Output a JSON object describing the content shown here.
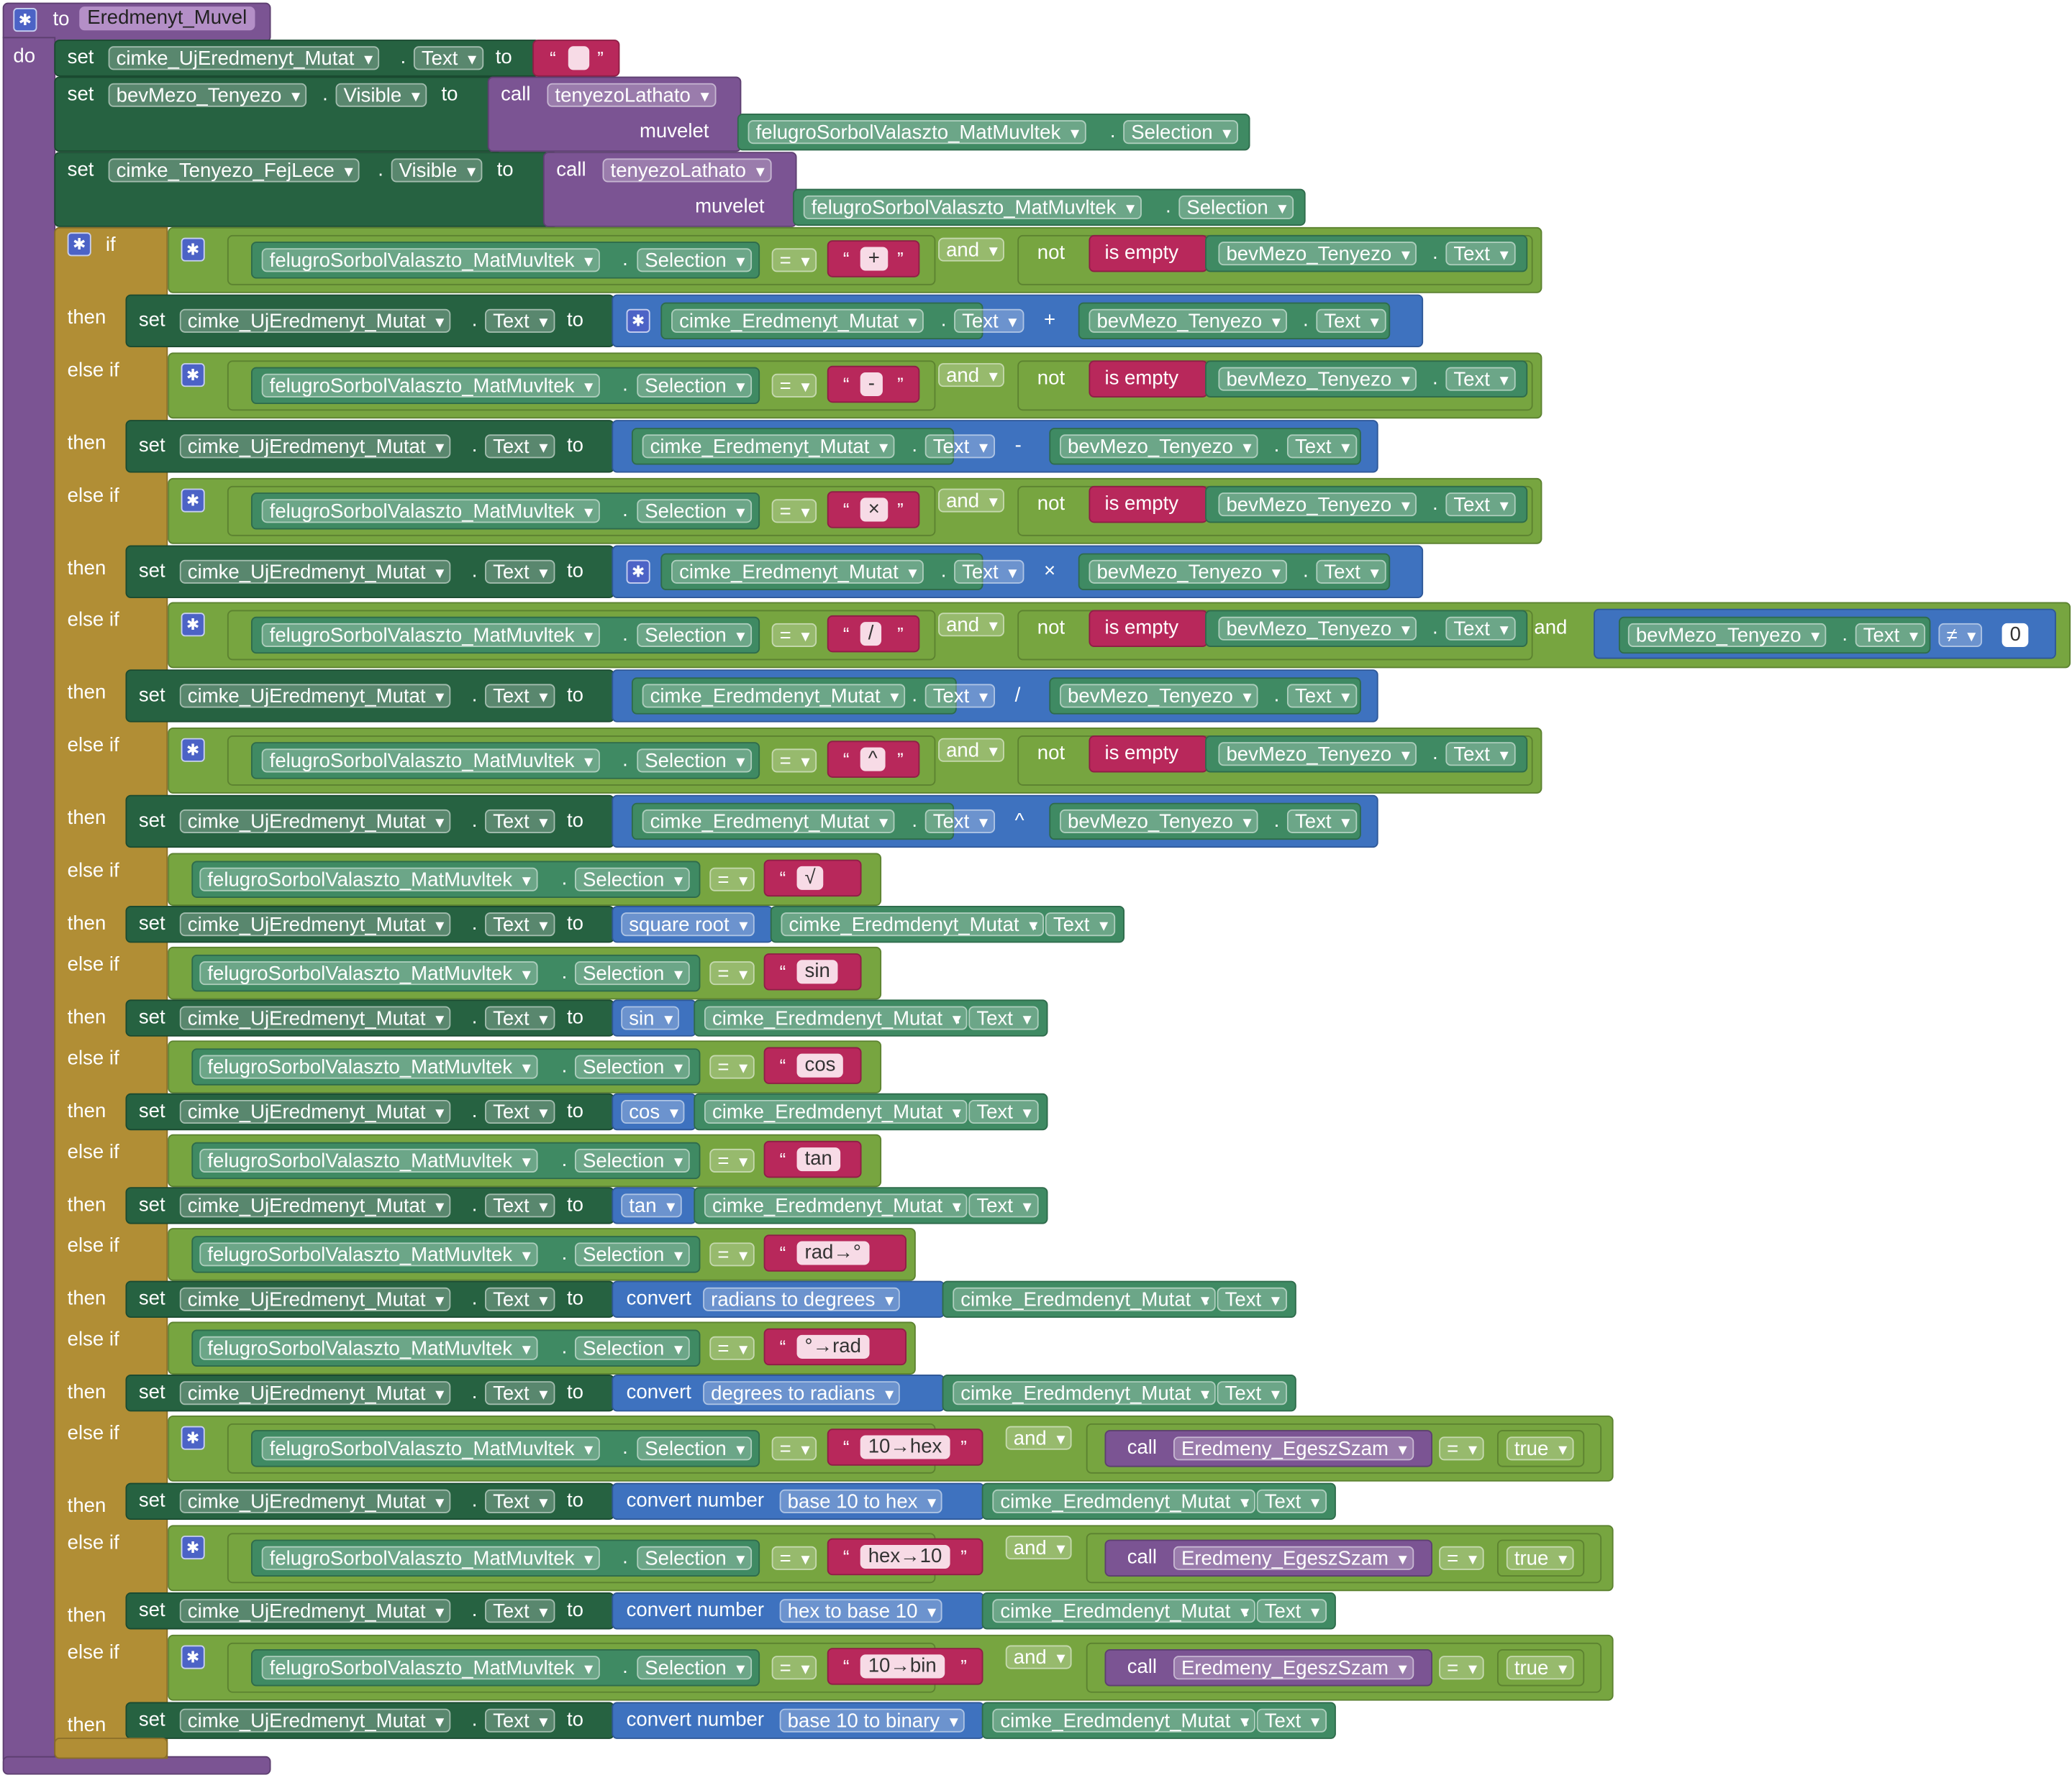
{
  "kw": {
    "to": "to",
    "do": "do",
    "set": "set",
    "dot": ".",
    "if": "if",
    "then": "then",
    "elseif": "else if",
    "and": "and",
    "not": "not",
    "isempty": "is empty",
    "call": "call",
    "muvelet": "muvelet",
    "eq": "=",
    "neq": "≠",
    "lq": "“",
    "rq": "”",
    "convert": "convert",
    "convertnum": "convert number",
    "plus": "+",
    "minus": "-",
    "times": "×",
    "div": "/",
    "pow": "^"
  },
  "proc_name": "Eredmenyt_Muvel",
  "comp": {
    "ujeredmeny": "cimke_UjEredmenyt_Mutat",
    "tenyezo": "bevMezo_Tenyezo",
    "fejlece": "cimke_Tenyezo_FejLece",
    "dropdown": "felugroSorbolValaszto_MatMuvltek",
    "eredmeny": "cimke_Eredmenyt_Mutat",
    "eredmeny_typo": "cimke_Eredmdenyt_Mutat"
  },
  "prop": {
    "text": "Text",
    "visible": "Visible",
    "selection": "Selection"
  },
  "proc_tenyezo": "tenyezoLathato",
  "proc_egesz": "Eredmeny_EgeszSzam",
  "strings": {
    "empty": " ",
    "plus": "+",
    "minus": "-",
    "times": "×",
    "div": "/",
    "pow": "^",
    "sqrt": "√",
    "sin": "sin",
    "cos": "cos",
    "tan": "tan",
    "rad2deg": "rad→°",
    "deg2rad": "°→rad",
    "hex10": "10→hex",
    "from_hex": "hex→10",
    "bin": "10→bin"
  },
  "ops": {
    "sqrt": "square root",
    "sin": "sin",
    "cos": "cos",
    "tan": "tan",
    "rad2deg": "radians to degrees",
    "deg2rad": "degrees to radians",
    "tohex": "base 10 to hex",
    "fromhex": "hex to base 10",
    "tobin": "base 10 to binary"
  },
  "num_zero": "0",
  "bool_true": "true",
  "colors": {
    "procedure": "#7b5493",
    "control": "#b18e35",
    "logic": "#77a540",
    "setter": "#266241",
    "component": "#3f8a63",
    "math": "#3e72bf",
    "text": "#b8285b"
  },
  "icons": {
    "mutator": "gear-icon",
    "dropdown": "chevron-down-icon"
  }
}
